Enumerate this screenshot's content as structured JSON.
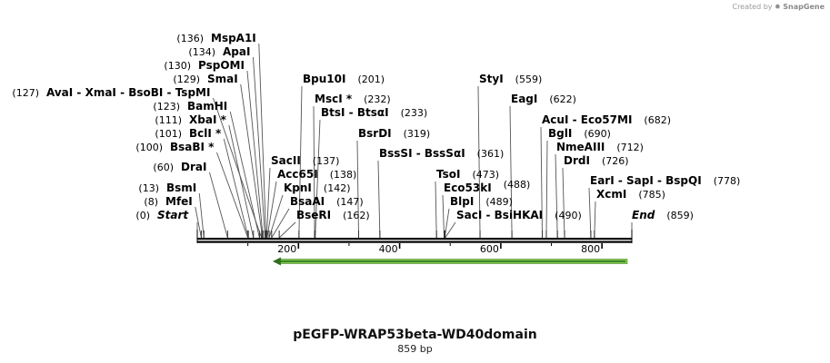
{
  "credit": {
    "prefix": "Created by",
    "brand": "SnapGene"
  },
  "plasmid": {
    "name": "pEGFP-WRAP53beta-WD40domain",
    "length_label": "859 bp",
    "length": 859
  },
  "scale": {
    "ticks": [
      200,
      400,
      600,
      800
    ]
  },
  "feature": {
    "name": "",
    "start": 149,
    "end": 850,
    "direction": "reverse",
    "color": "#7ec850"
  },
  "sites": [
    {
      "id": "start",
      "label": "Start",
      "pos": 0,
      "num": "(0)",
      "italic": true
    },
    {
      "id": "mfeI",
      "label": "MfeI",
      "pos": 8,
      "num": "(8)"
    },
    {
      "id": "bsmI",
      "label": "BsmI",
      "pos": 13,
      "num": "(13)"
    },
    {
      "id": "draI",
      "label": "DraI",
      "pos": 60,
      "num": "(60)"
    },
    {
      "id": "bsaBI",
      "label": "BsaBI *",
      "pos": 100,
      "num": "(100)"
    },
    {
      "id": "bclI",
      "label": "BclI *",
      "pos": 101,
      "num": "(101)"
    },
    {
      "id": "xbaI",
      "label": "XbaI *",
      "pos": 111,
      "num": "(111)"
    },
    {
      "id": "bamHI",
      "label": "BamHI",
      "pos": 123,
      "num": "(123)"
    },
    {
      "id": "avaI",
      "label": "AvaI  - XmaI  - BsoBI  - TspMI",
      "pos": 127,
      "num": "(127)"
    },
    {
      "id": "smaI",
      "label": "SmaI",
      "pos": 129,
      "num": "(129)"
    },
    {
      "id": "pspOMI",
      "label": "PspOMI",
      "pos": 130,
      "num": "(130)"
    },
    {
      "id": "apaI",
      "label": "ApaI",
      "pos": 134,
      "num": "(134)"
    },
    {
      "id": "mspA1I",
      "label": "MspA1I",
      "pos": 136,
      "num": "(136)"
    },
    {
      "id": "sacII",
      "label": "SacII",
      "pos": 137,
      "num": "(137)"
    },
    {
      "id": "acc65I",
      "label": "Acc65I",
      "pos": 138,
      "num": "(138)"
    },
    {
      "id": "kpnI",
      "label": "KpnI",
      "pos": 142,
      "num": "(142)"
    },
    {
      "id": "bsaAI",
      "label": "BsaAI",
      "pos": 147,
      "num": "(147)"
    },
    {
      "id": "bseRI",
      "label": "BseRI",
      "pos": 162,
      "num": "(162)"
    },
    {
      "id": "bpu10I",
      "label": "Bpu10I",
      "pos": 201,
      "num": "(201)"
    },
    {
      "id": "mscI",
      "label": "MscI *",
      "pos": 232,
      "num": "(232)"
    },
    {
      "id": "btsI",
      "label": "BtsI  - BtsαI",
      "pos": 233,
      "num": "(233)"
    },
    {
      "id": "bsrDI",
      "label": "BsrDI",
      "pos": 319,
      "num": "(319)"
    },
    {
      "id": "bssSI",
      "label": "BssSI  - BssSαI",
      "pos": 361,
      "num": "(361)"
    },
    {
      "id": "tsoI",
      "label": "TsoI",
      "pos": 473,
      "num": "(473)"
    },
    {
      "id": "eco53kI",
      "label": "Eco53kI",
      "pos": 488,
      "num": "(488)"
    },
    {
      "id": "blpI",
      "label": "BlpI",
      "pos": 489,
      "num": "(489)"
    },
    {
      "id": "sacI",
      "label": "SacI  - BsiHKAI",
      "pos": 490,
      "num": "(490)"
    },
    {
      "id": "styI",
      "label": "StyI",
      "pos": 559,
      "num": "(559)"
    },
    {
      "id": "eagI",
      "label": "EagI",
      "pos": 622,
      "num": "(622)"
    },
    {
      "id": "acuI",
      "label": "AcuI  - Eco57MI",
      "pos": 682,
      "num": "(682)"
    },
    {
      "id": "bglI",
      "label": "BglI",
      "pos": 690,
      "num": "(690)"
    },
    {
      "id": "nmeAIII",
      "label": "NmeAIII",
      "pos": 712,
      "num": "(712)"
    },
    {
      "id": "drdI",
      "label": "DrdI",
      "pos": 726,
      "num": "(726)"
    },
    {
      "id": "earI",
      "label": "EarI  - SapI  - BspQI",
      "pos": 778,
      "num": "(778)"
    },
    {
      "id": "xcmI",
      "label": "XcmI",
      "pos": 785,
      "num": "(785)"
    },
    {
      "id": "end",
      "label": "End",
      "pos": 859,
      "num": "(859)",
      "italic": true
    }
  ]
}
